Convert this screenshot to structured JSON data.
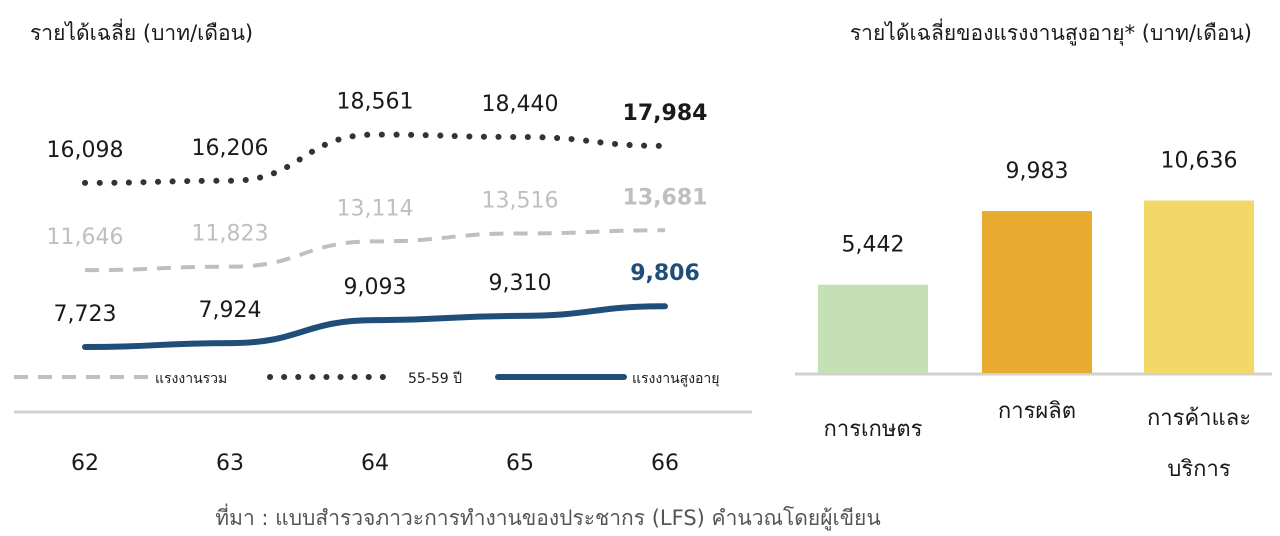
{
  "source_note": "ที่มา : แบบสำรวจภาวะการทำงานของประชากร (LFS) คำนวณโดยผู้เขียน",
  "colors": {
    "line_total": "#bfbfbf",
    "line_5559": "#333333",
    "line_elderly": "#1f4e79",
    "bar_agri": "#c5e0b4",
    "bar_mfg": "#e9ab2f",
    "bar_trade": "#f2d769",
    "axis": "#d0d0d0"
  },
  "chart_data": [
    {
      "type": "line",
      "title": "รายได้เฉลี่ย (บาท/เดือน)",
      "categories": [
        "62",
        "63",
        "64",
        "65",
        "66"
      ],
      "series": [
        {
          "name": "55-59 ปี",
          "values": [
            16098,
            16206,
            18561,
            18440,
            17984
          ],
          "labels": [
            "16,098",
            "16,206",
            "18,561",
            "18,440",
            "17,984"
          ],
          "style": "dotted",
          "color": "#333333"
        },
        {
          "name": "แรงงานรวม",
          "values": [
            11646,
            11823,
            13114,
            13516,
            13681
          ],
          "labels": [
            "11,646",
            "11,823",
            "13,114",
            "13,516",
            "13,681"
          ],
          "style": "dashed",
          "color": "#bfbfbf"
        },
        {
          "name": "แรงงานสูงอายุ",
          "values": [
            7723,
            7924,
            9093,
            9310,
            9806
          ],
          "labels": [
            "7,723",
            "7,924",
            "9,093",
            "9,310",
            "9,806"
          ],
          "style": "solid",
          "color": "#1f4e79"
        }
      ],
      "legend_order": [
        "แรงงานรวม",
        "55-59 ปี",
        "แรงงานสูงอายุ"
      ],
      "legend_position": "bottom"
    },
    {
      "type": "bar",
      "title": "รายได้เฉลี่ยของแรงงานสูงอายุ* (บาท/เดือน)",
      "categories": [
        "การเกษตร",
        "การผลิต",
        "การค้าและบริการ"
      ],
      "category_lines": [
        [
          "การเกษตร"
        ],
        [
          "การผลิต"
        ],
        [
          "การค้าและ",
          "บริการ"
        ]
      ],
      "values": [
        5442,
        9983,
        10636
      ],
      "labels": [
        "5,442",
        "9,983",
        "10,636"
      ],
      "bar_colors": [
        "#c5e0b4",
        "#e9ab2f",
        "#f2d769"
      ]
    }
  ]
}
